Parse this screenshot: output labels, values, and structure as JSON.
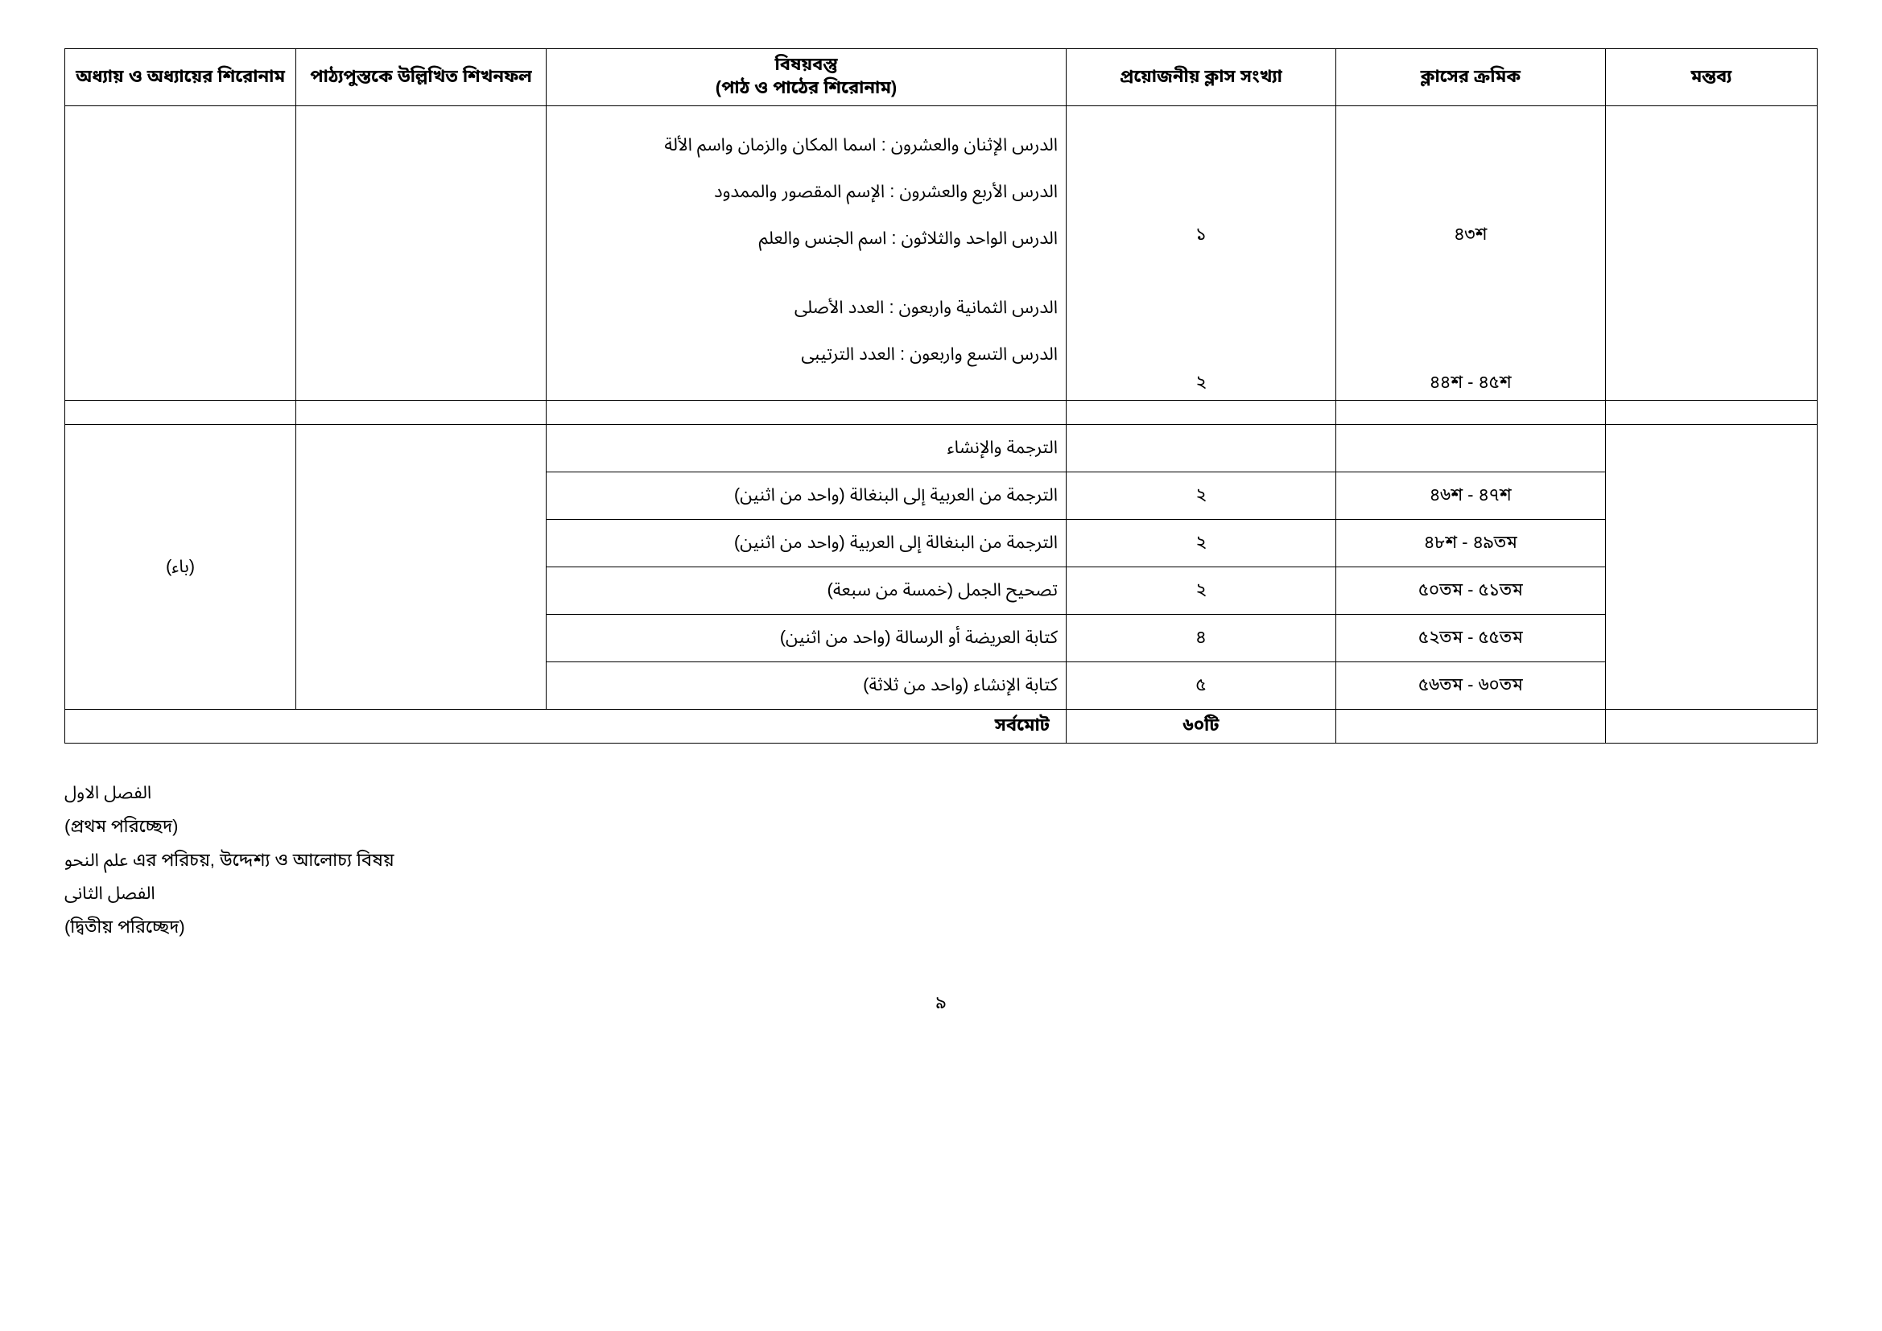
{
  "headers": {
    "col1": "অধ্যায় ও অধ্যায়ের শিরোনাম",
    "col2": "পাঠ্যপুস্তকে উল্লিখিত শিখনফল",
    "col3_top": "বিষয়বস্তু",
    "col3_bottom": "(পাঠ ও পাঠের শিরোনাম)",
    "col4": "প্রয়োজনীয় ক্লাস সংখ্যা",
    "col5": "ক্লাসের ক্রমিক",
    "col6": "মন্তব্য"
  },
  "section1": {
    "line1": "الدرس الإثنان والعشرون : اسما المكان والزمان واسم الألة",
    "line2": "الدرس الأربع والعشرون : الإسم المقصور والممدود",
    "line3": "الدرس الواحد والثلاثون : اسم الجنس والعلم",
    "line4": "الدرس الثمانية واربعون : العدد الأصلى",
    "line5": "الدرس التسع واربعون : العدد الترتيبى",
    "count1": "১",
    "count2": "২",
    "serial1": "৪৩শ",
    "serial2": "৪৪শ - ৪৫শ"
  },
  "section2": {
    "chapter": "(باء)",
    "row0": "الترجمة والإنشاء",
    "row1": {
      "content": "الترجمة من العربية إلى البنغالة (واحد من اثنين)",
      "count": "২",
      "serial": "৪৬শ - ৪৭শ"
    },
    "row2": {
      "content": "الترجمة من البنغالة إلى العربية (واحد من اثنين)",
      "count": "২",
      "serial": "৪৮শ - ৪৯তম"
    },
    "row3": {
      "content": "تصحيح الجمل (خمسة من سبعة)",
      "count": "২",
      "serial": "৫০তম - ৫১তম"
    },
    "row4": {
      "content": "كتابة العريضة أو الرسالة (واحد من اثنين)",
      "count": "৪",
      "serial": "৫২তম - ৫৫তম"
    },
    "row5": {
      "content": "كتابة الإنشاء (واحد من ثلاثة)",
      "count": "৫",
      "serial": "৫৬তম - ৬০তম"
    }
  },
  "total": {
    "label": "সর্বমোট",
    "value": "৬০টি"
  },
  "footer": {
    "line1": "الفصل الاول",
    "line2": "(প্রথম পরিচ্ছেদ)",
    "line3_arabic": "علم النحو",
    "line3_bengali": " এর পরিচয়, উদ্দেশ্য ও আলোচ্য বিষয়",
    "line4": "الفصل الثانى",
    "line5": "(দ্বিতীয় পরিচ্ছেদ)"
  },
  "page_number": "৯"
}
